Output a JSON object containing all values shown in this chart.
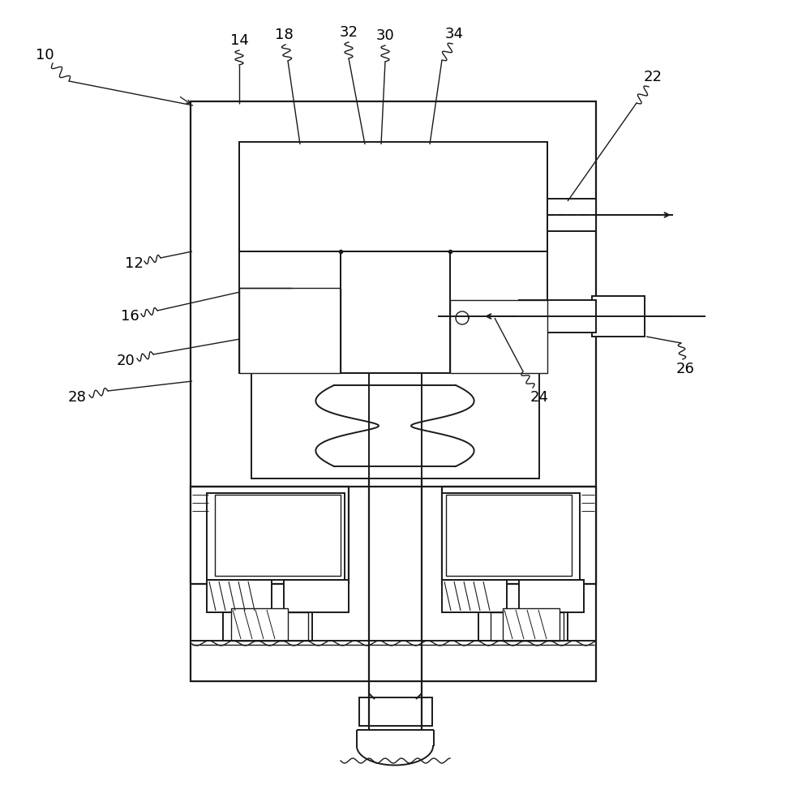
{
  "bg_color": "#ffffff",
  "lc": "#1a1a1a",
  "fig_width": 9.73,
  "fig_height": 10.0,
  "lw_main": 1.4,
  "lw_thin": 1.0,
  "lw_thick": 1.6,
  "label_fontsize": 13
}
